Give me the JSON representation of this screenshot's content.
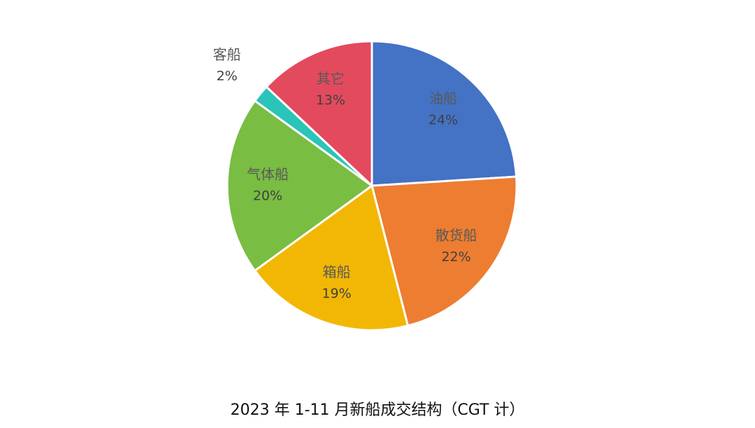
{
  "chart_data": {
    "type": "pie",
    "title": "2023 年 1-11 月新船成交结构（CGT 计）",
    "categories": [
      "油船",
      "散货船",
      "箱船",
      "气体船",
      "客船",
      "其它"
    ],
    "values": [
      24,
      22,
      19,
      20,
      2,
      13
    ],
    "value_labels": [
      "24%",
      "22%",
      "19%",
      "20%",
      "2%",
      "13%"
    ],
    "colors": [
      "#4472c4",
      "#ed7d31",
      "#f2b705",
      "#79bd43",
      "#2bc4b8",
      "#e34a5e"
    ]
  }
}
